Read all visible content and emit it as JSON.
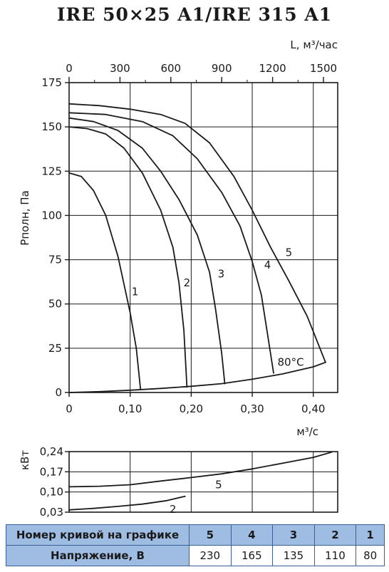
{
  "title": "IRE 50×25 A1/IRE 315 A1",
  "chart_data": [
    {
      "type": "line",
      "title": "",
      "ylabel": "Pполн, Па",
      "xlabel": "м³/с",
      "x2label": "L, м³/час",
      "xlim": [
        0,
        0.44
      ],
      "ylim": [
        0,
        175
      ],
      "xticks": [
        "0",
        "0,10",
        "0,20",
        "0,30",
        "0,40"
      ],
      "xtick_values": [
        0,
        0.1,
        0.2,
        0.3,
        0.4
      ],
      "x2ticks": [
        "0",
        "300",
        "600",
        "900",
        "1200",
        "1500"
      ],
      "x2tick_values": [
        0,
        300,
        600,
        900,
        1200,
        1500
      ],
      "yticks": [
        "0",
        "25",
        "50",
        "75",
        "100",
        "125",
        "150",
        "175"
      ],
      "ytick_values": [
        0,
        25,
        50,
        75,
        100,
        125,
        150,
        175
      ],
      "annotation": "80°C",
      "series": [
        {
          "name": "1",
          "label_at": [
            0.108,
            55
          ],
          "points": [
            [
              0,
              124
            ],
            [
              0.02,
              122
            ],
            [
              0.04,
              114
            ],
            [
              0.06,
              100
            ],
            [
              0.08,
              77
            ],
            [
              0.1,
              45
            ],
            [
              0.11,
              25
            ],
            [
              0.117,
              2
            ]
          ]
        },
        {
          "name": "2",
          "label_at": [
            0.193,
            60
          ],
          "points": [
            [
              0,
              150
            ],
            [
              0.03,
              149
            ],
            [
              0.06,
              146
            ],
            [
              0.09,
              138
            ],
            [
              0.12,
              124
            ],
            [
              0.15,
              103
            ],
            [
              0.17,
              82
            ],
            [
              0.18,
              62
            ],
            [
              0.188,
              35
            ],
            [
              0.193,
              3
            ]
          ]
        },
        {
          "name": "3",
          "label_at": [
            0.249,
            65
          ],
          "points": [
            [
              0,
              155
            ],
            [
              0.04,
              153
            ],
            [
              0.08,
              148
            ],
            [
              0.12,
              138
            ],
            [
              0.15,
              125
            ],
            [
              0.18,
              109
            ],
            [
              0.21,
              89
            ],
            [
              0.23,
              68
            ],
            [
              0.24,
              47
            ],
            [
              0.25,
              22
            ],
            [
              0.255,
              5
            ]
          ]
        },
        {
          "name": "4",
          "label_at": [
            0.325,
            70
          ],
          "points": [
            [
              0,
              158
            ],
            [
              0.06,
              157
            ],
            [
              0.12,
              153
            ],
            [
              0.17,
              145
            ],
            [
              0.21,
              132
            ],
            [
              0.25,
              113
            ],
            [
              0.28,
              94
            ],
            [
              0.3,
              74
            ],
            [
              0.315,
              55
            ],
            [
              0.325,
              33
            ],
            [
              0.335,
              11
            ]
          ]
        },
        {
          "name": "5",
          "label_at": [
            0.36,
            77
          ],
          "points": [
            [
              0,
              163
            ],
            [
              0.05,
              162
            ],
            [
              0.1,
              160
            ],
            [
              0.15,
              157
            ],
            [
              0.19,
              152
            ],
            [
              0.23,
              141
            ],
            [
              0.27,
              122
            ],
            [
              0.3,
              103
            ],
            [
              0.33,
              82
            ],
            [
              0.36,
              63
            ],
            [
              0.39,
              43
            ],
            [
              0.42,
              17
            ]
          ]
        },
        {
          "name": "80°C",
          "points": [
            [
              0,
              0
            ],
            [
              0.05,
              0.5
            ],
            [
              0.1,
              1.3
            ],
            [
              0.15,
              2.3
            ],
            [
              0.2,
              3.5
            ],
            [
              0.25,
              5
            ],
            [
              0.3,
              7.5
            ],
            [
              0.35,
              10.5
            ],
            [
              0.4,
              14.5
            ],
            [
              0.42,
              17
            ]
          ]
        }
      ]
    },
    {
      "type": "line",
      "title": "",
      "ylabel": "кВт",
      "xlim": [
        0,
        0.44
      ],
      "ylim": [
        0.03,
        0.24
      ],
      "yticks": [
        "0,24",
        "0,17",
        "0,10",
        "0,03"
      ],
      "ytick_values": [
        0.24,
        0.17,
        0.1,
        0.03
      ],
      "series": [
        {
          "name": "5",
          "label_at": [
            0.245,
            0.125
          ],
          "points": [
            [
              0,
              0.118
            ],
            [
              0.05,
              0.12
            ],
            [
              0.1,
              0.125
            ],
            [
              0.15,
              0.138
            ],
            [
              0.2,
              0.15
            ],
            [
              0.25,
              0.163
            ],
            [
              0.3,
              0.18
            ],
            [
              0.35,
              0.2
            ],
            [
              0.4,
              0.22
            ],
            [
              0.43,
              0.238
            ]
          ]
        },
        {
          "name": "2",
          "label_at": [
            0.17,
            0.04
          ],
          "points": [
            [
              0,
              0.038
            ],
            [
              0.04,
              0.043
            ],
            [
              0.08,
              0.05
            ],
            [
              0.12,
              0.058
            ],
            [
              0.16,
              0.07
            ],
            [
              0.19,
              0.085
            ]
          ]
        }
      ]
    }
  ],
  "table": {
    "row1_label": "Номер кривой на графике",
    "row2_label": "Напряжение, В",
    "curves": [
      "5",
      "4",
      "3",
      "2",
      "1"
    ],
    "voltages": [
      "230",
      "165",
      "135",
      "110",
      "80"
    ]
  },
  "colors": {
    "line": "#1a1a1a",
    "table_header": "#9fbde3",
    "table_border": "#3a5f96"
  }
}
